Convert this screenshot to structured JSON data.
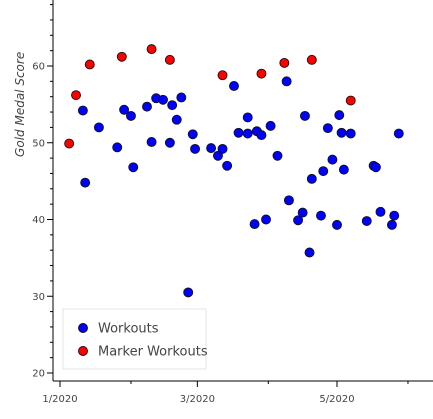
{
  "chart_data": {
    "type": "scatter",
    "ylabel": "Gold Medal Score",
    "xlabel": "",
    "ylim": [
      19,
      81
    ],
    "xlim": [
      "2019-12-22",
      "2020-06-06"
    ],
    "x_ticks": [
      "1/2020",
      "3/2020",
      "5/2020"
    ],
    "x_tick_dates": [
      "2020-01-01",
      "2020-03-01",
      "2020-05-01"
    ],
    "y_ticks": [
      20,
      30,
      40,
      50,
      60
    ],
    "grid": false,
    "legend_position": "bottom-left",
    "series": [
      {
        "name": "Workouts",
        "color": "#0000ff",
        "points": [
          [
            "2020-01-11",
            54.2
          ],
          [
            "2020-01-12",
            44.8
          ],
          [
            "2020-01-18",
            52.0
          ],
          [
            "2020-01-26",
            49.4
          ],
          [
            "2020-01-29",
            54.3
          ],
          [
            "2020-02-01",
            53.5
          ],
          [
            "2020-02-02",
            46.8
          ],
          [
            "2020-02-08",
            54.7
          ],
          [
            "2020-02-10",
            50.1
          ],
          [
            "2020-02-12",
            55.8
          ],
          [
            "2020-02-15",
            55.6
          ],
          [
            "2020-02-18",
            50.0
          ],
          [
            "2020-02-19",
            54.9
          ],
          [
            "2020-02-21",
            53.0
          ],
          [
            "2020-02-23",
            55.9
          ],
          [
            "2020-02-26",
            30.5
          ],
          [
            "2020-02-28",
            51.1
          ],
          [
            "2020-02-29",
            49.2
          ],
          [
            "2020-03-07",
            49.3
          ],
          [
            "2020-03-10",
            48.3
          ],
          [
            "2020-03-12",
            49.2
          ],
          [
            "2020-03-14",
            47.0
          ],
          [
            "2020-03-17",
            57.4
          ],
          [
            "2020-03-19",
            51.3
          ],
          [
            "2020-03-23",
            53.3
          ],
          [
            "2020-03-23",
            51.2
          ],
          [
            "2020-03-26",
            39.4
          ],
          [
            "2020-03-27",
            51.5
          ],
          [
            "2020-03-29",
            51.0
          ],
          [
            "2020-03-31",
            40.0
          ],
          [
            "2020-04-02",
            52.2
          ],
          [
            "2020-04-05",
            48.3
          ],
          [
            "2020-04-09",
            58.0
          ],
          [
            "2020-04-10",
            42.5
          ],
          [
            "2020-04-14",
            39.9
          ],
          [
            "2020-04-16",
            40.9
          ],
          [
            "2020-04-17",
            53.5
          ],
          [
            "2020-04-19",
            35.7
          ],
          [
            "2020-04-20",
            45.3
          ],
          [
            "2020-04-24",
            40.5
          ],
          [
            "2020-04-25",
            46.3
          ],
          [
            "2020-04-27",
            51.9
          ],
          [
            "2020-04-29",
            47.8
          ],
          [
            "2020-05-01",
            39.3
          ],
          [
            "2020-05-02",
            53.6
          ],
          [
            "2020-05-03",
            51.3
          ],
          [
            "2020-05-04",
            46.5
          ],
          [
            "2020-05-07",
            51.2
          ],
          [
            "2020-05-14",
            39.8
          ],
          [
            "2020-05-17",
            47.0
          ],
          [
            "2020-05-18",
            46.8
          ],
          [
            "2020-05-20",
            41.0
          ],
          [
            "2020-05-25",
            39.3
          ],
          [
            "2020-05-26",
            40.5
          ],
          [
            "2020-05-28",
            51.2
          ]
        ]
      },
      {
        "name": "Marker Workouts",
        "color": "#ff0000",
        "points": [
          [
            "2020-01-05",
            49.9
          ],
          [
            "2020-01-08",
            56.2
          ],
          [
            "2020-01-14",
            60.2
          ],
          [
            "2020-01-28",
            61.2
          ],
          [
            "2020-02-10",
            62.2
          ],
          [
            "2020-02-18",
            60.8
          ],
          [
            "2020-03-12",
            58.8
          ],
          [
            "2020-03-29",
            59.0
          ],
          [
            "2020-04-08",
            60.4
          ],
          [
            "2020-04-20",
            60.8
          ],
          [
            "2020-05-07",
            55.5
          ]
        ]
      }
    ]
  }
}
